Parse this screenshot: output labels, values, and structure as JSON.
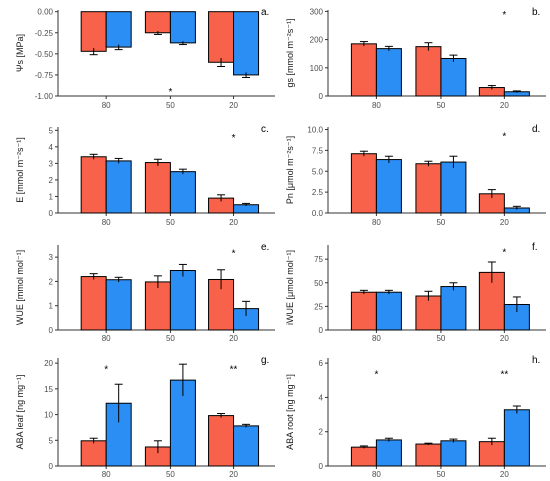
{
  "figure": {
    "colors": {
      "series_a": "#F8624A",
      "series_b": "#2B8EF5",
      "axis": "#333333",
      "text": "#4D4D4D",
      "error": "#000000"
    }
  },
  "chart_data": [
    {
      "type": "bar",
      "panel": "a.",
      "ylabel": "Ψs [MPa]",
      "categories": [
        "80",
        "50",
        "20"
      ],
      "yticks": [
        "0.00",
        "-0.25",
        "-0.50",
        "-0.75",
        "-1.00"
      ],
      "ylim": [
        -1.0,
        0.02
      ],
      "series": [
        {
          "values": [
            -0.47,
            -0.25,
            -0.6
          ],
          "errors": [
            0.04,
            0.02,
            0.05
          ]
        },
        {
          "values": [
            -0.42,
            -0.37,
            -0.75
          ],
          "errors": [
            0.03,
            0.02,
            0.03
          ]
        }
      ],
      "annotations": [
        {
          "text": "*",
          "category": "50",
          "y": -0.94
        }
      ]
    },
    {
      "type": "bar",
      "panel": "b.",
      "ylabel": "gs [mmol m⁻²s⁻¹]",
      "categories": [
        "80",
        "50",
        "20"
      ],
      "yticks": [
        "0",
        "100",
        "200",
        "300"
      ],
      "ylim": [
        0,
        305
      ],
      "series": [
        {
          "values": [
            185,
            175,
            30
          ],
          "errors": [
            8,
            14,
            7
          ]
        },
        {
          "values": [
            168,
            133,
            15
          ],
          "errors": [
            8,
            12,
            3
          ]
        }
      ],
      "annotations": [
        {
          "text": "*",
          "category": "20",
          "y": 290
        }
      ]
    },
    {
      "type": "bar",
      "panel": "c.",
      "ylabel": "E [mmol m⁻²s⁻¹]",
      "categories": [
        "80",
        "50",
        "20"
      ],
      "yticks": [
        "0",
        "1",
        "2",
        "3",
        "4",
        "5"
      ],
      "ylim": [
        0,
        5.2
      ],
      "series": [
        {
          "values": [
            3.4,
            3.05,
            0.9
          ],
          "errors": [
            0.15,
            0.2,
            0.2
          ]
        },
        {
          "values": [
            3.15,
            2.5,
            0.5
          ],
          "errors": [
            0.15,
            0.15,
            0.08
          ]
        }
      ],
      "annotations": [
        {
          "text": "*",
          "category": "20",
          "y": 4.6
        }
      ]
    },
    {
      "type": "bar",
      "panel": "d.",
      "ylabel": "Pn [μmol m⁻²s⁻¹]",
      "categories": [
        "80",
        "50",
        "20"
      ],
      "yticks": [
        "0.0",
        "2.5",
        "5.0",
        "7.5",
        "10.0"
      ],
      "ylim": [
        0,
        10.3
      ],
      "series": [
        {
          "values": [
            7.1,
            5.9,
            2.3
          ],
          "errors": [
            0.3,
            0.3,
            0.5
          ]
        },
        {
          "values": [
            6.4,
            6.1,
            0.6
          ],
          "errors": [
            0.4,
            0.7,
            0.2
          ]
        }
      ],
      "annotations": [
        {
          "text": "*",
          "category": "20",
          "y": 9.3
        }
      ]
    },
    {
      "type": "bar",
      "panel": "e.",
      "ylabel": "WUE [mmol mol⁻¹]",
      "categories": [
        "80",
        "50",
        "20"
      ],
      "yticks": [
        "0",
        "1",
        "2",
        "3"
      ],
      "ylim": [
        0,
        3.5
      ],
      "series": [
        {
          "values": [
            2.2,
            1.98,
            2.08
          ],
          "errors": [
            0.12,
            0.25,
            0.4
          ]
        },
        {
          "values": [
            2.07,
            2.45,
            0.88
          ],
          "errors": [
            0.1,
            0.25,
            0.3
          ]
        }
      ],
      "annotations": [
        {
          "text": "*",
          "category": "20",
          "y": 3.2
        }
      ]
    },
    {
      "type": "bar",
      "panel": "f.",
      "ylabel": "iWUE [μmol mol⁻¹]",
      "categories": [
        "80",
        "50",
        "20"
      ],
      "yticks": [
        "0",
        "25",
        "50",
        "75"
      ],
      "ylim": [
        0,
        90
      ],
      "series": [
        {
          "values": [
            40,
            36,
            61
          ],
          "errors": [
            2,
            5,
            11
          ]
        },
        {
          "values": [
            40,
            46,
            27
          ],
          "errors": [
            2,
            4,
            8
          ]
        }
      ],
      "annotations": [
        {
          "text": "*",
          "category": "20",
          "y": 83
        }
      ]
    },
    {
      "type": "bar",
      "panel": "g.",
      "ylabel": "ABA leaf [ng mg⁻¹]",
      "categories": [
        "80",
        "50",
        "20"
      ],
      "yticks": [
        "0",
        "5",
        "10",
        "15",
        "20"
      ],
      "ylim": [
        0,
        21
      ],
      "series": [
        {
          "values": [
            4.9,
            3.7,
            9.8
          ],
          "errors": [
            0.5,
            1.2,
            0.4
          ]
        },
        {
          "values": [
            12.2,
            16.7,
            7.8
          ],
          "errors": [
            3.7,
            3.1,
            0.3
          ]
        }
      ],
      "annotations": [
        {
          "text": "*",
          "category": "80",
          "y": 19
        },
        {
          "text": "**",
          "category": "20",
          "y": 19
        }
      ]
    },
    {
      "type": "bar",
      "panel": "h.",
      "ylabel": "ABA root [ng mg⁻¹]",
      "categories": [
        "80",
        "50",
        "20"
      ],
      "yticks": [
        "0",
        "2",
        "4",
        "6"
      ],
      "ylim": [
        0,
        6.3
      ],
      "series": [
        {
          "values": [
            1.1,
            1.28,
            1.42
          ],
          "errors": [
            0.07,
            0.05,
            0.2
          ]
        },
        {
          "values": [
            1.52,
            1.47,
            3.28
          ],
          "errors": [
            0.1,
            0.1,
            0.22
          ]
        }
      ],
      "annotations": [
        {
          "text": "*",
          "category": "80",
          "y": 5.4
        },
        {
          "text": "**",
          "category": "20",
          "y": 5.4
        }
      ]
    }
  ]
}
